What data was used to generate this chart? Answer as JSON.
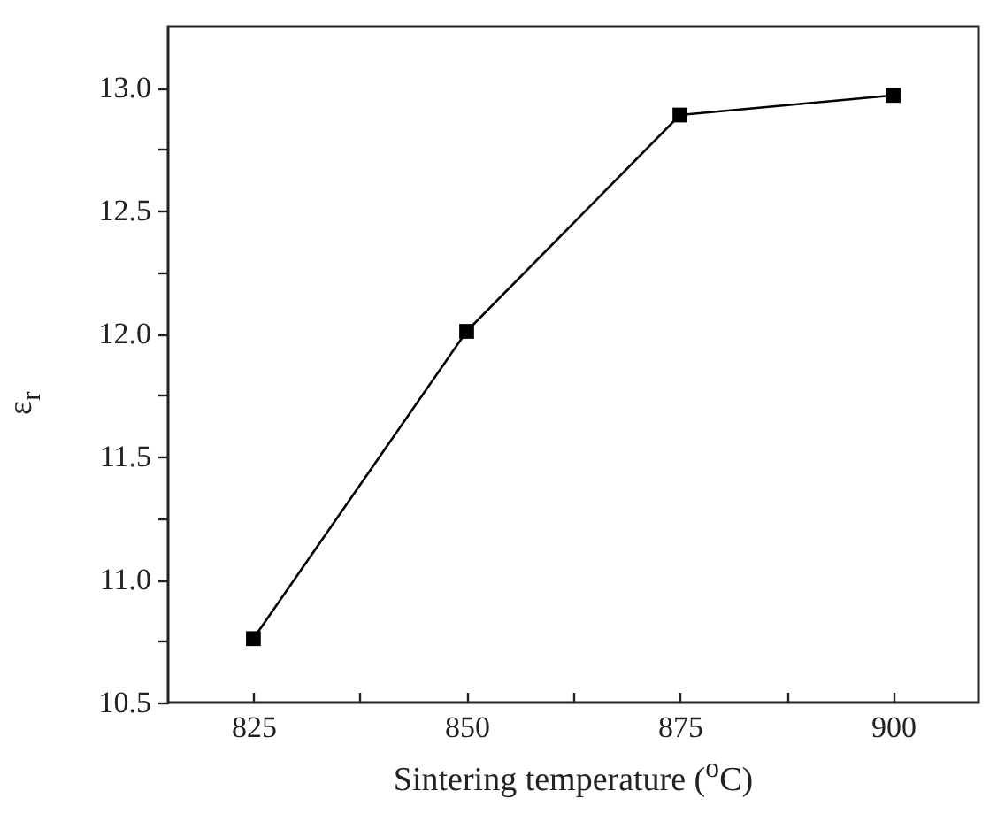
{
  "chart_data": {
    "type": "line",
    "xlabel": "Sintering temperature ($^{o}$C)",
    "ylabel": "ε$_{r}$",
    "x": [
      825,
      850,
      875,
      900
    ],
    "series": [
      {
        "color": "#000000",
        "values": [
          10.76,
          12.01,
          12.89,
          12.97
        ]
      }
    ],
    "xlim": [
      815,
      910
    ],
    "xticks": [
      825,
      {
        "value": 837.5,
        "label": null
      },
      850,
      {
        "value": 862.5,
        "label": null
      },
      875,
      {
        "value": 887.5,
        "label": null
      },
      900
    ],
    "ylim": [
      10.5,
      13.25
    ],
    "yticks": [
      {
        "value": 10.5,
        "label": "10.5"
      },
      {
        "value": 10.75,
        "label": null
      },
      {
        "value": 11.0,
        "label": "11.0"
      },
      {
        "value": 11.25,
        "label": null
      },
      {
        "value": 11.5,
        "label": "11.5"
      },
      {
        "value": 11.75,
        "label": null
      },
      {
        "value": 12.0,
        "label": "12.0"
      },
      {
        "value": 12.25,
        "label": null
      },
      {
        "value": 12.5,
        "label": "12.5"
      },
      {
        "value": 12.75,
        "label": null
      },
      {
        "value": 13.0,
        "label": "13.0"
      }
    ],
    "marker": "square",
    "line_style": "solid",
    "grid": false,
    "legend": false
  }
}
